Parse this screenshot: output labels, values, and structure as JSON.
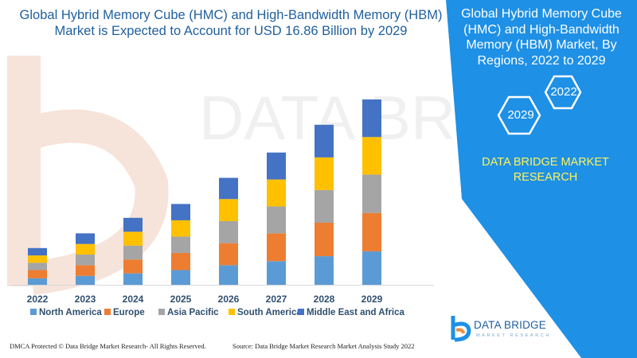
{
  "title": "Global Hybrid Memory Cube (HMC) and High-Bandwidth Memory (HBM) Market is Expected to Account for USD 16.86 Billion by 2029",
  "panel": {
    "title": "Global Hybrid Memory Cube (HMC) and High-Bandwidth Memory (HBM) Market, By Regions, 2022 to 2029",
    "hex_top": "2022",
    "hex_bottom": "2029",
    "brand": "DATA BRIDGE MARKET RESEARCH"
  },
  "logo": {
    "name": "DATA BRIDGE",
    "tagline": "MARKET RESEARCH"
  },
  "watermark": {
    "text": "DATA BRIDGE"
  },
  "footer": {
    "left": "DMCA Protected © Data Bridge Market Research- All Rights Reserved.",
    "right": "Source: Data Bridge Market Research Market Analysis Study 2022"
  },
  "colors": {
    "accent_blue": "#1e90e6",
    "title_blue": "#1f5f9e",
    "brand_yellow": "#fff35a"
  },
  "chart_data": {
    "type": "bar",
    "stacked": true,
    "categories": [
      "2022",
      "2023",
      "2024",
      "2025",
      "2026",
      "2027",
      "2028",
      "2029"
    ],
    "series": [
      {
        "name": "North America",
        "color": "#5b9bd5",
        "values": [
          8,
          11,
          14,
          18,
          24,
          29,
          35,
          41
        ]
      },
      {
        "name": "Europe",
        "color": "#ed7d31",
        "values": [
          10,
          13,
          17,
          21,
          27,
          34,
          41,
          47
        ]
      },
      {
        "name": "Asia Pacific",
        "color": "#a5a5a5",
        "values": [
          9,
          13,
          17,
          20,
          27,
          33,
          40,
          47
        ]
      },
      {
        "name": "South America",
        "color": "#ffc000",
        "values": [
          9,
          13,
          17,
          20,
          27,
          33,
          40,
          46
        ]
      },
      {
        "name": "Middle East and Africa",
        "color": "#4472c4",
        "values": [
          9,
          13,
          17,
          20,
          26,
          33,
          40,
          46
        ]
      }
    ],
    "legend_position": "bottom",
    "grid": false,
    "show_y_axis": false
  }
}
